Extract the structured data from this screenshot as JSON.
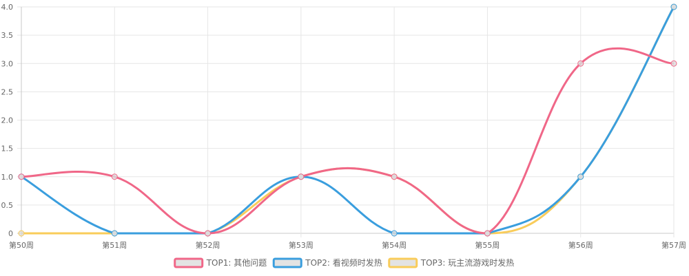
{
  "chart_data": {
    "type": "line",
    "categories": [
      "第50周",
      "第51周",
      "第52周",
      "第53周",
      "第54周",
      "第55周",
      "第56周",
      "第57周"
    ],
    "y_ticks": [
      "0",
      "0.5",
      "1.0",
      "1.5",
      "2.0",
      "2.5",
      "3.0",
      "3.5",
      "4.0"
    ],
    "ylim": [
      0,
      4
    ],
    "grid": true,
    "legend_position": "bottom",
    "series": [
      {
        "name": "TOP1: 其他问题",
        "color": "#f06788",
        "values": [
          1,
          1,
          0,
          1,
          1,
          0,
          3,
          3
        ]
      },
      {
        "name": "TOP2: 看视频时发热",
        "color": "#3a9ede",
        "values": [
          1,
          0,
          0,
          1,
          0,
          0,
          1,
          4
        ]
      },
      {
        "name": "TOP3: 玩主流游戏时发热",
        "color": "#f9cc5a",
        "values": [
          0,
          0,
          0,
          1,
          1,
          0,
          1,
          4
        ]
      }
    ]
  }
}
